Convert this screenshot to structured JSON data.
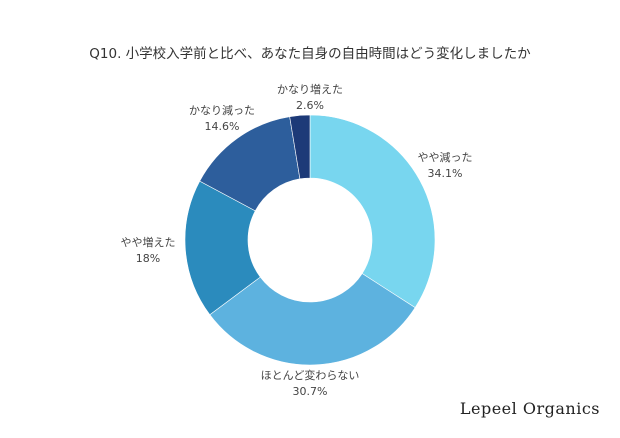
{
  "chart_data": {
    "type": "pie",
    "title": "Q10. 小学校入学前と比べ、あなた自身の自由時間はどう変化しましたか",
    "categories": [
      "やや減った",
      "ほとんど変わらない",
      "やや増えた",
      "かなり減った",
      "かなり増えた"
    ],
    "values": [
      34.1,
      30.7,
      18,
      14.6,
      2.6
    ],
    "value_labels": [
      "34.1%",
      "30.7%",
      "18%",
      "14.6%",
      "2.6%"
    ],
    "colors": [
      "#78d6ef",
      "#5db2df",
      "#2b8bbd",
      "#2d5e9c",
      "#1d3a78"
    ],
    "donut": true
  },
  "brand": "Lepeel Organics"
}
